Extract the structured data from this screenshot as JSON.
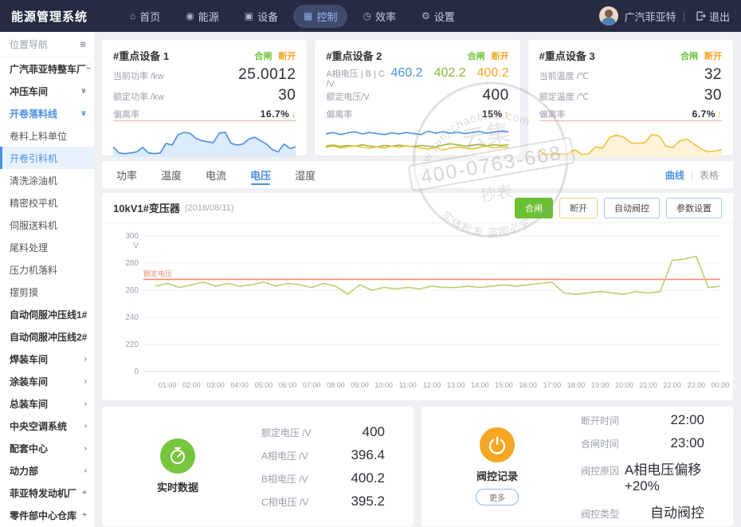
{
  "app": {
    "title": "能源管理系统"
  },
  "topnav": {
    "items": [
      {
        "label": "首页",
        "icon": "⌂",
        "icon_name": "home-icon",
        "active": false
      },
      {
        "label": "能源",
        "icon": "◉",
        "icon_name": "energy-pin-icon",
        "active": false
      },
      {
        "label": "设备",
        "icon": "▣",
        "icon_name": "device-monitor-icon",
        "active": false
      },
      {
        "label": "控制",
        "icon": "▦",
        "icon_name": "control-panel-icon",
        "active": true
      },
      {
        "label": "效率",
        "icon": "◷",
        "icon_name": "efficiency-clock-icon",
        "active": false
      },
      {
        "label": "设置",
        "icon": "⚙",
        "icon_name": "settings-gear-icon",
        "active": false
      }
    ],
    "user_name": "广汽菲亚特",
    "logout_label": "退出"
  },
  "sidebar": {
    "header": "位置导航",
    "filter_icon": "≡",
    "items": [
      {
        "label": "广汽菲亚特整车厂",
        "suffix": "−",
        "style": "bold"
      },
      {
        "label": "冲压车间",
        "suffix": "∨",
        "style": "bold"
      },
      {
        "label": "开卷落料线",
        "suffix": "∨",
        "style": "blue"
      },
      {
        "label": "卷料上料单位",
        "suffix": "",
        "style": "sub"
      },
      {
        "label": "开卷引料机",
        "suffix": "",
        "style": "active"
      },
      {
        "label": "清洗涂油机",
        "suffix": "",
        "style": "sub"
      },
      {
        "label": "精密校平机",
        "suffix": "",
        "style": "sub"
      },
      {
        "label": "伺服送料机",
        "suffix": "",
        "style": "sub"
      },
      {
        "label": "尾料处理",
        "suffix": "",
        "style": "sub"
      },
      {
        "label": "压力机落料",
        "suffix": "",
        "style": "sub"
      },
      {
        "label": "摆剪摸",
        "suffix": "",
        "style": "sub"
      },
      {
        "label": "自动伺服冲压线1#",
        "suffix": "",
        "style": "bold"
      },
      {
        "label": "自动伺服冲压线2#",
        "suffix": "",
        "style": "bold"
      },
      {
        "label": "焊装车间",
        "suffix": "›",
        "style": "bold"
      },
      {
        "label": "涂装车间",
        "suffix": "›",
        "style": "bold"
      },
      {
        "label": "总装车间",
        "suffix": "›",
        "style": "bold"
      },
      {
        "label": "中央空调系统",
        "suffix": "›",
        "style": "bold"
      },
      {
        "label": "配套中心",
        "suffix": "›",
        "style": "bold"
      },
      {
        "label": "动力部",
        "suffix": "›",
        "style": "bold"
      },
      {
        "label": "菲亚特发动机厂",
        "suffix": "+",
        "style": "bold"
      },
      {
        "label": "零件部中心仓库",
        "suffix": "+",
        "style": "bold"
      }
    ]
  },
  "device_cards": [
    {
      "title": "#重点设备 1",
      "on_label": "合闸",
      "off_label": "断开",
      "rows": [
        {
          "label": "当前功率 /kw",
          "value": "25.0012"
        },
        {
          "label": "额定功率 /kw",
          "value": "30"
        },
        {
          "label": "偏离率",
          "value": "16.7%",
          "small": true,
          "trend": "↓",
          "trend_color": "#52c41a"
        }
      ],
      "spark_chart": 1,
      "topline": true
    },
    {
      "title": "#重点设备 2",
      "on_label": "合闸",
      "off_label": "断开",
      "rows": [
        {
          "label": "A相电压 | B | C /V",
          "values": [
            {
              "v": "460.2",
              "color": "#4a90e2"
            },
            {
              "v": "402.2",
              "color": "#8cb832"
            },
            {
              "v": "400.2",
              "color": "#f5a623"
            }
          ]
        },
        {
          "label": "额定电压/V",
          "value": "400"
        },
        {
          "label": "偏离率",
          "value": "15%",
          "small": true,
          "trend": "↑",
          "trend_color": "#f5a623"
        }
      ],
      "spark_chart": 2,
      "topline": false
    },
    {
      "title": "#重点设备 3",
      "on_label": "合闸",
      "off_label": "断开",
      "rows": [
        {
          "label": "当前温度 /℃",
          "value": "32"
        },
        {
          "label": "额定温度 /℃",
          "value": "30"
        },
        {
          "label": "偏离率",
          "value": "6.7%",
          "small": true,
          "trend": "↑",
          "trend_color": "#f5a623"
        }
      ],
      "spark_chart": 3,
      "topline": true
    }
  ],
  "tabs": {
    "items": [
      "功率",
      "温度",
      "电流",
      "电压",
      "湿度"
    ],
    "active_index": 3
  },
  "view_switch": {
    "curve": "曲线",
    "table": "表格"
  },
  "panel": {
    "title": "10kV1#变压器",
    "date": "(2018/08/11)",
    "buttons": [
      {
        "label": "合闸",
        "style": "green"
      },
      {
        "label": "断开",
        "style": "orange"
      },
      {
        "label": "自动阀控",
        "style": "blue"
      },
      {
        "label": "参数设置",
        "style": "blue"
      }
    ]
  },
  "chart_data": [
    {
      "id": "main-voltage-curve",
      "type": "line",
      "title": "10kV1#变压器 电压曲线 2018/08/11",
      "ylabel_unit": "V",
      "yticks": [
        300,
        280,
        260,
        240,
        220,
        0
      ],
      "rated_line": {
        "label": "额定电压",
        "value": 268,
        "color": "#f58a6f"
      },
      "x_labels": [
        "01:00",
        "02:00",
        "03:00",
        "04:00",
        "05:00",
        "06:00",
        "07:00",
        "08:00",
        "09:00",
        "10:00",
        "11:00",
        "12:00",
        "13:00",
        "14:00",
        "15:00",
        "16:00",
        "17:00",
        "18:00",
        "19:00",
        "20:00",
        "21:00",
        "22:00",
        "23:00",
        "00:00"
      ],
      "t_start": 0.5,
      "t_step": 0.5,
      "t_max": 24,
      "series": [
        {
          "name": "电压",
          "color": "#bccf6f",
          "values": [
            263,
            265,
            262,
            264,
            266,
            263,
            265,
            263,
            264,
            266,
            263,
            265,
            264,
            262,
            265,
            263,
            257,
            264,
            260,
            262,
            261,
            262,
            261,
            263,
            262,
            262,
            263,
            262,
            263,
            264,
            263,
            264,
            265,
            266,
            258,
            257,
            258,
            259,
            258,
            257,
            259,
            258,
            259,
            282,
            283,
            285,
            262,
            263
          ]
        }
      ]
    },
    {
      "id": "spark-device-1",
      "type": "area",
      "color": "#4a90e2",
      "fill": "#dcebfb",
      "values": [
        30,
        12,
        10,
        12,
        15,
        28,
        12,
        10,
        12,
        40,
        35,
        65,
        72,
        70,
        55,
        48,
        45,
        42,
        70,
        72,
        40,
        35,
        38,
        52,
        58,
        48,
        38,
        22,
        15,
        38,
        25,
        30
      ]
    },
    {
      "id": "spark-device-2",
      "type": "multiline",
      "series": [
        {
          "color": "#4a90e2",
          "values": [
            66,
            70,
            64,
            69,
            72,
            66,
            70,
            67,
            64,
            69,
            66,
            70,
            67,
            64,
            74,
            68,
            72,
            68,
            71,
            67,
            70,
            73,
            68,
            71,
            74,
            72
          ]
        },
        {
          "color": "#9ab93d",
          "values": [
            32,
            34,
            30,
            33,
            31,
            35,
            31,
            29,
            33,
            31,
            34,
            31,
            30,
            33,
            31,
            29,
            34,
            38,
            35,
            31,
            34,
            36,
            32,
            35,
            33,
            35
          ]
        },
        {
          "color": "#f0c03c",
          "values": [
            28,
            31,
            26,
            29,
            32,
            28,
            25,
            29,
            26,
            31,
            28,
            32,
            29,
            26,
            23,
            28,
            20,
            25,
            29,
            26,
            23,
            28,
            31,
            26,
            29,
            28
          ]
        }
      ]
    },
    {
      "id": "spark-device-3",
      "type": "area",
      "color": "#f0c03c",
      "fill": "#fdf3d8",
      "values": [
        18,
        8,
        8,
        9,
        8,
        22,
        8,
        9,
        30,
        26,
        58,
        64,
        58,
        42,
        40,
        42,
        66,
        62,
        32,
        28,
        48,
        52,
        38,
        24,
        15,
        18,
        22
      ]
    }
  ],
  "realtime_card": {
    "title": "实时数据",
    "rows": [
      {
        "label": "额定电压 /V",
        "value": "400"
      },
      {
        "label": "A相电压 /V",
        "value": "396.4"
      },
      {
        "label": "B相电压 /V",
        "value": "400.2"
      },
      {
        "label": "C相电压 /V",
        "value": "395.2"
      }
    ]
  },
  "valve_card": {
    "title": "阀控记录",
    "more_label": "更多",
    "rows": [
      {
        "label": "断开时间",
        "value": "22:00"
      },
      {
        "label": "合闸时间",
        "value": "23:00"
      },
      {
        "label": "阀控原因",
        "value": "A相电压偏移+20%"
      },
      {
        "label": "阀控类型",
        "value": "自动阀控"
      }
    ]
  },
  "watermark": {
    "url": "www.yunjichaobiao.com",
    "phone": "400-0763-668",
    "name_top": "云集",
    "name_bottom": "抄表",
    "notice": "实体批发 盗图必究"
  },
  "colors": {
    "accent_blue": "#4a90e2",
    "green": "#6cc034",
    "orange": "#f5a623",
    "rated_salmon": "#f58a6f",
    "curve_green": "#bccf6f",
    "topbar": "#272b41"
  }
}
